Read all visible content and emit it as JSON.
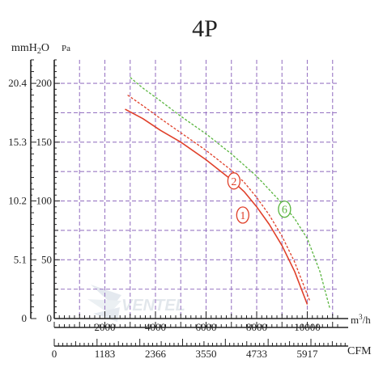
{
  "chart_data": {
    "type": "line",
    "title": "4P",
    "y_left_unit_main": "mmH",
    "y_left_unit_sub": "2",
    "y_left_unit_tail": "O",
    "y_right_unit": "Pa",
    "x_unit_m3h_base": "m",
    "x_unit_m3h_sup": "3",
    "x_unit_m3h_tail": "/h",
    "x_unit_cfm": "CFM",
    "y_pa_ticks": [
      0,
      50,
      100,
      150,
      200
    ],
    "y_mmh2o_ticks": [
      {
        "label": "0",
        "pa": 0
      },
      {
        "label": "5.1",
        "pa": 50
      },
      {
        "label": "10.2",
        "pa": 100
      },
      {
        "label": "15.3",
        "pa": 150
      },
      {
        "label": "20.4",
        "pa": 200
      }
    ],
    "x_m3h_ticks": [
      2000,
      4000,
      6000,
      8000,
      10000
    ],
    "x_cfm_ticks": [
      {
        "label": "0",
        "m3h": 0
      },
      {
        "label": "1183",
        "m3h": 2000
      },
      {
        "label": "2366",
        "m3h": 4000
      },
      {
        "label": "3550",
        "m3h": 6000
      },
      {
        "label": "4733",
        "m3h": 8000
      },
      {
        "label": "5917",
        "m3h": 10000
      }
    ],
    "xlim": [
      0,
      11200
    ],
    "ylim": [
      0,
      220
    ],
    "grid": true,
    "series": [
      {
        "name": "1",
        "color": "#e0402a",
        "style": "solid",
        "x": [
          2800,
          3500,
          4200,
          5000,
          6000,
          7000,
          7500,
          8000,
          8500,
          9000,
          9500,
          10000
        ],
        "y": [
          178,
          170,
          160,
          150,
          135,
          118,
          108,
          95,
          80,
          62,
          40,
          12
        ]
      },
      {
        "name": "2",
        "color": "#e0402a",
        "style": "dashed",
        "x": [
          2900,
          3500,
          4200,
          5000,
          6000,
          7000,
          7500,
          8000,
          8500,
          9000,
          9500,
          10100
        ],
        "y": [
          190,
          181,
          170,
          158,
          143,
          126,
          116,
          103,
          88,
          70,
          48,
          15
        ]
      },
      {
        "name": "6",
        "color": "#5ab540",
        "style": "dashed",
        "x": [
          3000,
          3500,
          4200,
          5000,
          6000,
          7000,
          8000,
          9000,
          9500,
          10000,
          10500,
          10900
        ],
        "y": [
          205,
          196,
          185,
          172,
          157,
          140,
          121,
          98,
          85,
          68,
          40,
          8
        ]
      }
    ],
    "labels": [
      {
        "text": "2",
        "series": "2",
        "x": 7100,
        "y": 117
      },
      {
        "text": "1",
        "series": "1",
        "x": 7450,
        "y": 88
      },
      {
        "text": "6",
        "series": "6",
        "x": 9100,
        "y": 93
      }
    ],
    "watermark": "VENTEL"
  }
}
